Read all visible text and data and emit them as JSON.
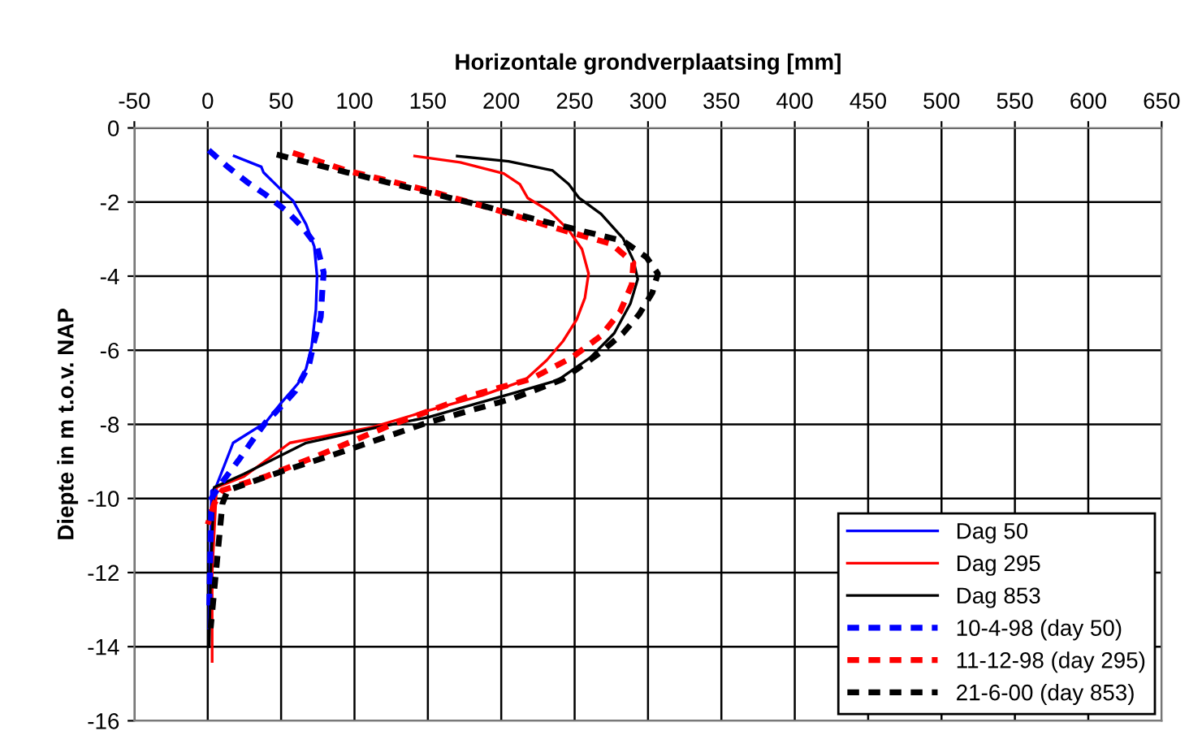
{
  "chart_data": {
    "type": "line",
    "xlabel": "Horizontale grondverplaatsing [mm]",
    "ylabel": "Diepte in m t.o.v. NAP",
    "xlim": [
      -50,
      650
    ],
    "xticks": [
      -50,
      0,
      50,
      100,
      150,
      200,
      250,
      300,
      350,
      400,
      450,
      500,
      550,
      600,
      650
    ],
    "ylim": [
      -16,
      0
    ],
    "yticks": [
      0,
      -2,
      -4,
      -6,
      -8,
      -10,
      -12,
      -14,
      -16
    ],
    "grid": true,
    "legend": "bottom right",
    "marker": "none",
    "series": [
      {
        "name": "Dag 50",
        "color": "#0000ff",
        "line_style": "solid",
        "x": [
          18,
          36.5,
          38,
          50,
          58,
          67,
          72.6,
          74.5,
          73.7,
          70.8,
          67,
          61.5,
          50.5,
          39.4,
          17.3,
          5.5,
          2.5,
          1.8,
          0.7
        ],
        "values": [
          -0.76,
          -1.05,
          -1.2,
          -1.67,
          -1.96,
          -2.6,
          -3.2,
          -4.0,
          -4.9,
          -5.9,
          -6.5,
          -6.9,
          -7.4,
          -7.95,
          -8.5,
          -9.7,
          -9.8,
          -11.5,
          -13.5
        ]
      },
      {
        "name": "Dag 295",
        "color": "#ff0000",
        "line_style": "solid",
        "x": [
          141,
          172,
          201.7,
          212.7,
          218,
          233,
          246,
          255,
          259.5,
          257,
          251.4,
          242,
          231,
          216,
          187,
          150,
          113,
          56,
          24.7,
          6,
          3,
          3
        ],
        "values": [
          -0.76,
          -0.93,
          -1.23,
          -1.52,
          -1.89,
          -2.25,
          -2.76,
          -3.27,
          -3.93,
          -4.59,
          -5.17,
          -5.76,
          -6.27,
          -6.81,
          -7.22,
          -7.63,
          -8.07,
          -8.5,
          -9.41,
          -9.7,
          -12,
          -14.4
        ]
      },
      {
        "name": "Dag 853",
        "color": "#000000",
        "line_style": "solid",
        "x": [
          170,
          205,
          235,
          246,
          253,
          268,
          283,
          290,
          293,
          288,
          277,
          260.6,
          238.5,
          209,
          150,
          113,
          67,
          24.7,
          4.4,
          2,
          1
        ],
        "values": [
          -0.76,
          -0.9,
          -1.15,
          -1.52,
          -1.89,
          -2.32,
          -2.98,
          -3.57,
          -4.08,
          -4.74,
          -5.54,
          -6.2,
          -6.81,
          -7.15,
          -7.81,
          -8.1,
          -8.5,
          -9.34,
          -9.7,
          -12,
          -14
        ]
      },
      {
        "name": "10-4-98 (day 50)",
        "color": "#0000ff",
        "line_style": "dashed",
        "x": [
          0.7,
          13.6,
          26.5,
          39.4,
          54,
          65,
          74.5,
          79,
          78,
          77,
          72.6,
          69,
          59.7,
          50.5,
          39.4,
          30.2,
          21,
          10,
          2.5,
          1
        ],
        "values": [
          -0.6,
          -1.05,
          -1.45,
          -1.8,
          -2.25,
          -2.7,
          -3.2,
          -3.9,
          -4.45,
          -5.1,
          -5.75,
          -6.4,
          -7.1,
          -7.5,
          -7.95,
          -8.45,
          -8.97,
          -9.55,
          -10,
          -13
        ]
      },
      {
        "name": "11-12-98 (day 295)",
        "color": "#ff0000",
        "line_style": "dashed",
        "x": [
          58,
          94.7,
          150,
          194,
          242,
          275,
          290,
          289,
          281,
          268,
          248,
          220,
          179.5,
          124,
          76,
          39.4,
          10,
          4.4,
          0
        ],
        "values": [
          -0.67,
          -1.15,
          -1.69,
          -2.18,
          -2.76,
          -3.13,
          -3.64,
          -4.22,
          -4.96,
          -5.61,
          -6.2,
          -6.78,
          -7.22,
          -8.03,
          -8.83,
          -9.41,
          -9.78,
          -10.14,
          -10.7
        ]
      },
      {
        "name": "21-6-00 (day 853)",
        "color": "#000000",
        "line_style": "dashed",
        "x": [
          47,
          94.7,
          143,
          187,
          253,
          283,
          299,
          306.7,
          303,
          294,
          283,
          268,
          242,
          209,
          150,
          91,
          50.5,
          13.6,
          10,
          2
        ],
        "values": [
          -0.72,
          -1.2,
          -1.67,
          -2.1,
          -2.76,
          -3.05,
          -3.49,
          -3.93,
          -4.44,
          -5.03,
          -5.54,
          -6.05,
          -6.78,
          -7.29,
          -7.95,
          -8.75,
          -9.27,
          -9.78,
          -10.14,
          -13.5
        ]
      }
    ]
  }
}
